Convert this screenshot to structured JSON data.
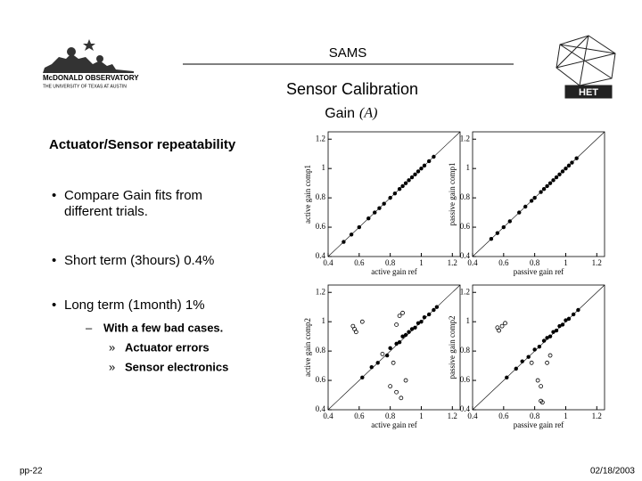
{
  "header": {
    "title": "SAMS",
    "subtitle": "Sensor Calibration",
    "section": "Gain",
    "section_symbol": "(A)"
  },
  "logos": {
    "observatory": "McDONALD OBSERVATORY",
    "university": "THE UNIVERSITY OF TEXAS AT AUSTIN",
    "telescope": "HET"
  },
  "body": {
    "heading": "Actuator/Sensor repeatability",
    "bullets": [
      {
        "lines": [
          "Compare Gain fits from",
          "different trials."
        ]
      },
      {
        "lines": [
          "Short term (3hours) 0.4%"
        ]
      },
      {
        "lines": [
          "Long term (1month) 1%"
        ],
        "sub": {
          "text": "With a few bad cases.",
          "items": [
            "Actuator errors",
            "Sensor electronics"
          ]
        }
      }
    ]
  },
  "footer": {
    "page": "pp-22",
    "date": "02/18/2003"
  },
  "chart_data": [
    {
      "type": "scatter",
      "xlabel": "active gain ref",
      "ylabel": "active gain comp1",
      "xlim": [
        0.4,
        1.25
      ],
      "ylim": [
        0.4,
        1.25
      ],
      "xticks": [
        0.4,
        0.6,
        0.8,
        1,
        1.2
      ],
      "yticks": [
        0.4,
        0.6,
        0.8,
        1,
        1.2
      ],
      "reference_line": true,
      "x": [
        0.5,
        0.55,
        0.6,
        0.66,
        0.7,
        0.73,
        0.76,
        0.8,
        0.83,
        0.86,
        0.88,
        0.9,
        0.92,
        0.94,
        0.96,
        0.98,
        1.0,
        1.02,
        1.05,
        1.08
      ],
      "y": [
        0.5,
        0.55,
        0.6,
        0.66,
        0.7,
        0.73,
        0.76,
        0.8,
        0.83,
        0.86,
        0.88,
        0.9,
        0.92,
        0.94,
        0.96,
        0.98,
        1.0,
        1.02,
        1.05,
        1.08
      ]
    },
    {
      "type": "scatter",
      "xlabel": "passive gain ref",
      "ylabel": "passive gain comp1",
      "xlim": [
        0.4,
        1.25
      ],
      "ylim": [
        0.4,
        1.25
      ],
      "xticks": [
        0.4,
        0.6,
        0.8,
        1,
        1.2
      ],
      "yticks": [
        0.4,
        0.6,
        0.8,
        1,
        1.2
      ],
      "reference_line": true,
      "x": [
        0.52,
        0.56,
        0.6,
        0.64,
        0.7,
        0.74,
        0.78,
        0.8,
        0.84,
        0.86,
        0.88,
        0.9,
        0.92,
        0.94,
        0.96,
        0.98,
        1.0,
        1.02,
        1.04,
        1.07
      ],
      "y": [
        0.52,
        0.56,
        0.6,
        0.64,
        0.7,
        0.74,
        0.78,
        0.8,
        0.84,
        0.86,
        0.88,
        0.9,
        0.92,
        0.94,
        0.96,
        0.98,
        1.0,
        1.02,
        1.04,
        1.07
      ]
    },
    {
      "type": "scatter",
      "xlabel": "active gain ref",
      "ylabel": "active gain comp2",
      "xlim": [
        0.4,
        1.25
      ],
      "ylim": [
        0.4,
        1.25
      ],
      "xticks": [
        0.4,
        0.6,
        0.8,
        1,
        1.2
      ],
      "yticks": [
        0.4,
        0.6,
        0.8,
        1,
        1.2
      ],
      "reference_line": true,
      "x": [
        0.62,
        0.68,
        0.72,
        0.78,
        0.8,
        0.84,
        0.86,
        0.88,
        0.9,
        0.92,
        0.94,
        0.96,
        0.98,
        1.0,
        1.02,
        1.05,
        1.08,
        1.1
      ],
      "y": [
        0.62,
        0.69,
        0.72,
        0.77,
        0.82,
        0.85,
        0.86,
        0.9,
        0.91,
        0.93,
        0.95,
        0.96,
        0.99,
        1.0,
        1.03,
        1.05,
        1.08,
        1.1
      ],
      "outlier_x": [
        0.56,
        0.57,
        0.58,
        0.62,
        0.75,
        0.82,
        0.84,
        0.86,
        0.88,
        0.8,
        0.84,
        0.9,
        0.87
      ],
      "outlier_y": [
        0.97,
        0.95,
        0.93,
        1.0,
        0.78,
        0.72,
        0.98,
        1.04,
        1.06,
        0.56,
        0.52,
        0.6,
        0.48
      ]
    },
    {
      "type": "scatter",
      "xlabel": "passive gain ref",
      "ylabel": "passive gain comp2",
      "xlim": [
        0.4,
        1.25
      ],
      "ylim": [
        0.4,
        1.25
      ],
      "xticks": [
        0.4,
        0.6,
        0.8,
        1,
        1.2
      ],
      "yticks": [
        0.4,
        0.6,
        0.8,
        1,
        1.2
      ],
      "reference_line": true,
      "x": [
        0.62,
        0.68,
        0.72,
        0.76,
        0.8,
        0.83,
        0.86,
        0.88,
        0.9,
        0.92,
        0.94,
        0.96,
        0.98,
        1.0,
        1.02,
        1.05,
        1.08
      ],
      "y": [
        0.62,
        0.68,
        0.73,
        0.76,
        0.81,
        0.83,
        0.87,
        0.89,
        0.9,
        0.93,
        0.94,
        0.97,
        0.98,
        1.01,
        1.02,
        1.05,
        1.08
      ],
      "outlier_x": [
        0.56,
        0.57,
        0.59,
        0.61,
        0.78,
        0.82,
        0.84,
        0.88,
        0.9,
        0.84,
        0.85
      ],
      "outlier_y": [
        0.96,
        0.94,
        0.97,
        0.99,
        0.72,
        0.6,
        0.56,
        0.72,
        0.77,
        0.46,
        0.45
      ]
    }
  ]
}
